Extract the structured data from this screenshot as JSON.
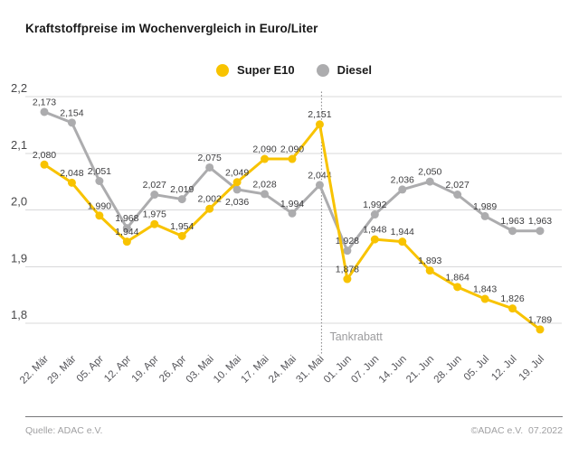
{
  "title": "Kraftstoffpreise im Wochenvergleich in Euro/Liter",
  "chart_data": {
    "type": "line",
    "unit": "Euro/Liter",
    "categories": [
      "22. Mär",
      "29. Mär",
      "05. Apr",
      "12. Apr",
      "19. Apr",
      "26. Apr",
      "03. Mai",
      "10. Mai",
      "17. Mai",
      "24. Mai",
      "31. Mai",
      "01. Jun",
      "07. Jun",
      "14. Jun",
      "21. Jun",
      "28. Jun",
      "05. Jul",
      "12. Jul",
      "19. Jul"
    ],
    "series": [
      {
        "name": "Super E10",
        "color": "#F8C300",
        "values": [
          2.08,
          2.048,
          1.99,
          1.944,
          1.975,
          1.954,
          2.002,
          2.049,
          2.09,
          2.09,
          2.151,
          1.878,
          1.948,
          1.944,
          1.893,
          1.864,
          1.843,
          1.826,
          1.789
        ]
      },
      {
        "name": "Diesel",
        "color": "#ACACAE",
        "values": [
          2.173,
          2.154,
          2.051,
          1.968,
          2.027,
          2.019,
          2.075,
          2.036,
          2.028,
          1.994,
          2.044,
          1.928,
          1.992,
          2.036,
          2.05,
          2.027,
          1.989,
          1.963,
          1.963
        ]
      }
    ],
    "y_ticks": [
      {
        "value": 2.2,
        "label": "2,2"
      },
      {
        "value": 2.1,
        "label": "2,1"
      },
      {
        "value": 2.0,
        "label": "2,0"
      },
      {
        "value": 1.9,
        "label": "1,9"
      },
      {
        "value": 1.8,
        "label": "1,8"
      }
    ],
    "ylim": [
      1.75,
      2.24
    ],
    "grid": true,
    "legend_position": "top-center",
    "decimal_separator": ",",
    "annotation": {
      "text": "Tankrabatt",
      "after_category": "31. Mai",
      "style": "dotted-vertical-line"
    },
    "label_overrides": [
      {
        "series": "Diesel",
        "index": 7,
        "position": "below"
      }
    ]
  },
  "footer": {
    "source": "Quelle: ADAC e.V.",
    "copyright": "©ADAC e.V.  07.2022"
  }
}
